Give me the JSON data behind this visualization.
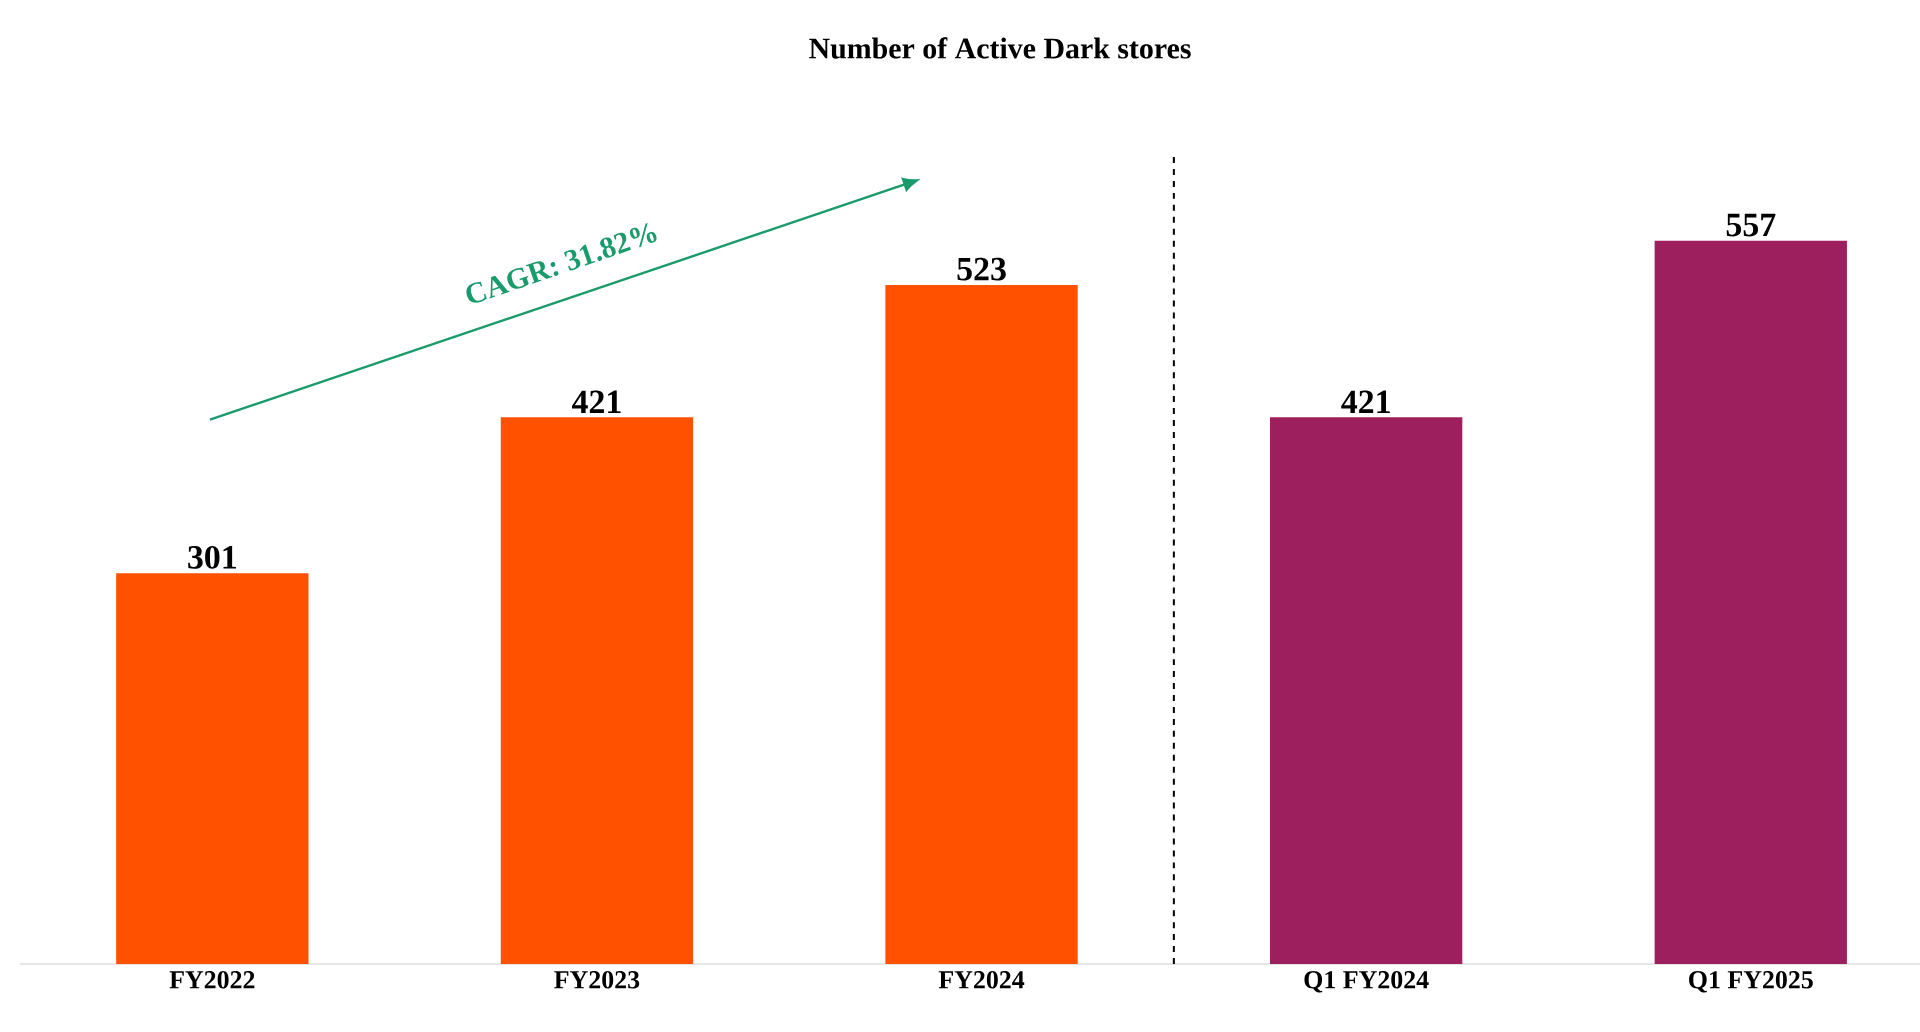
{
  "chart_data": {
    "type": "bar",
    "title": "Number of Active Dark stores",
    "categories": [
      "FY2022",
      "FY2023",
      "FY2024",
      "Q1 FY2024",
      "Q1 FY2025"
    ],
    "values": [
      301,
      421,
      523,
      421,
      557
    ],
    "colors": [
      "#ff5100",
      "#ff5100",
      "#ff5100",
      "#9e1f5e",
      "#9e1f5e"
    ],
    "tick_labels": "x",
    "data_labels": true,
    "annotations": [
      "CAGR: 31.82%"
    ]
  }
}
